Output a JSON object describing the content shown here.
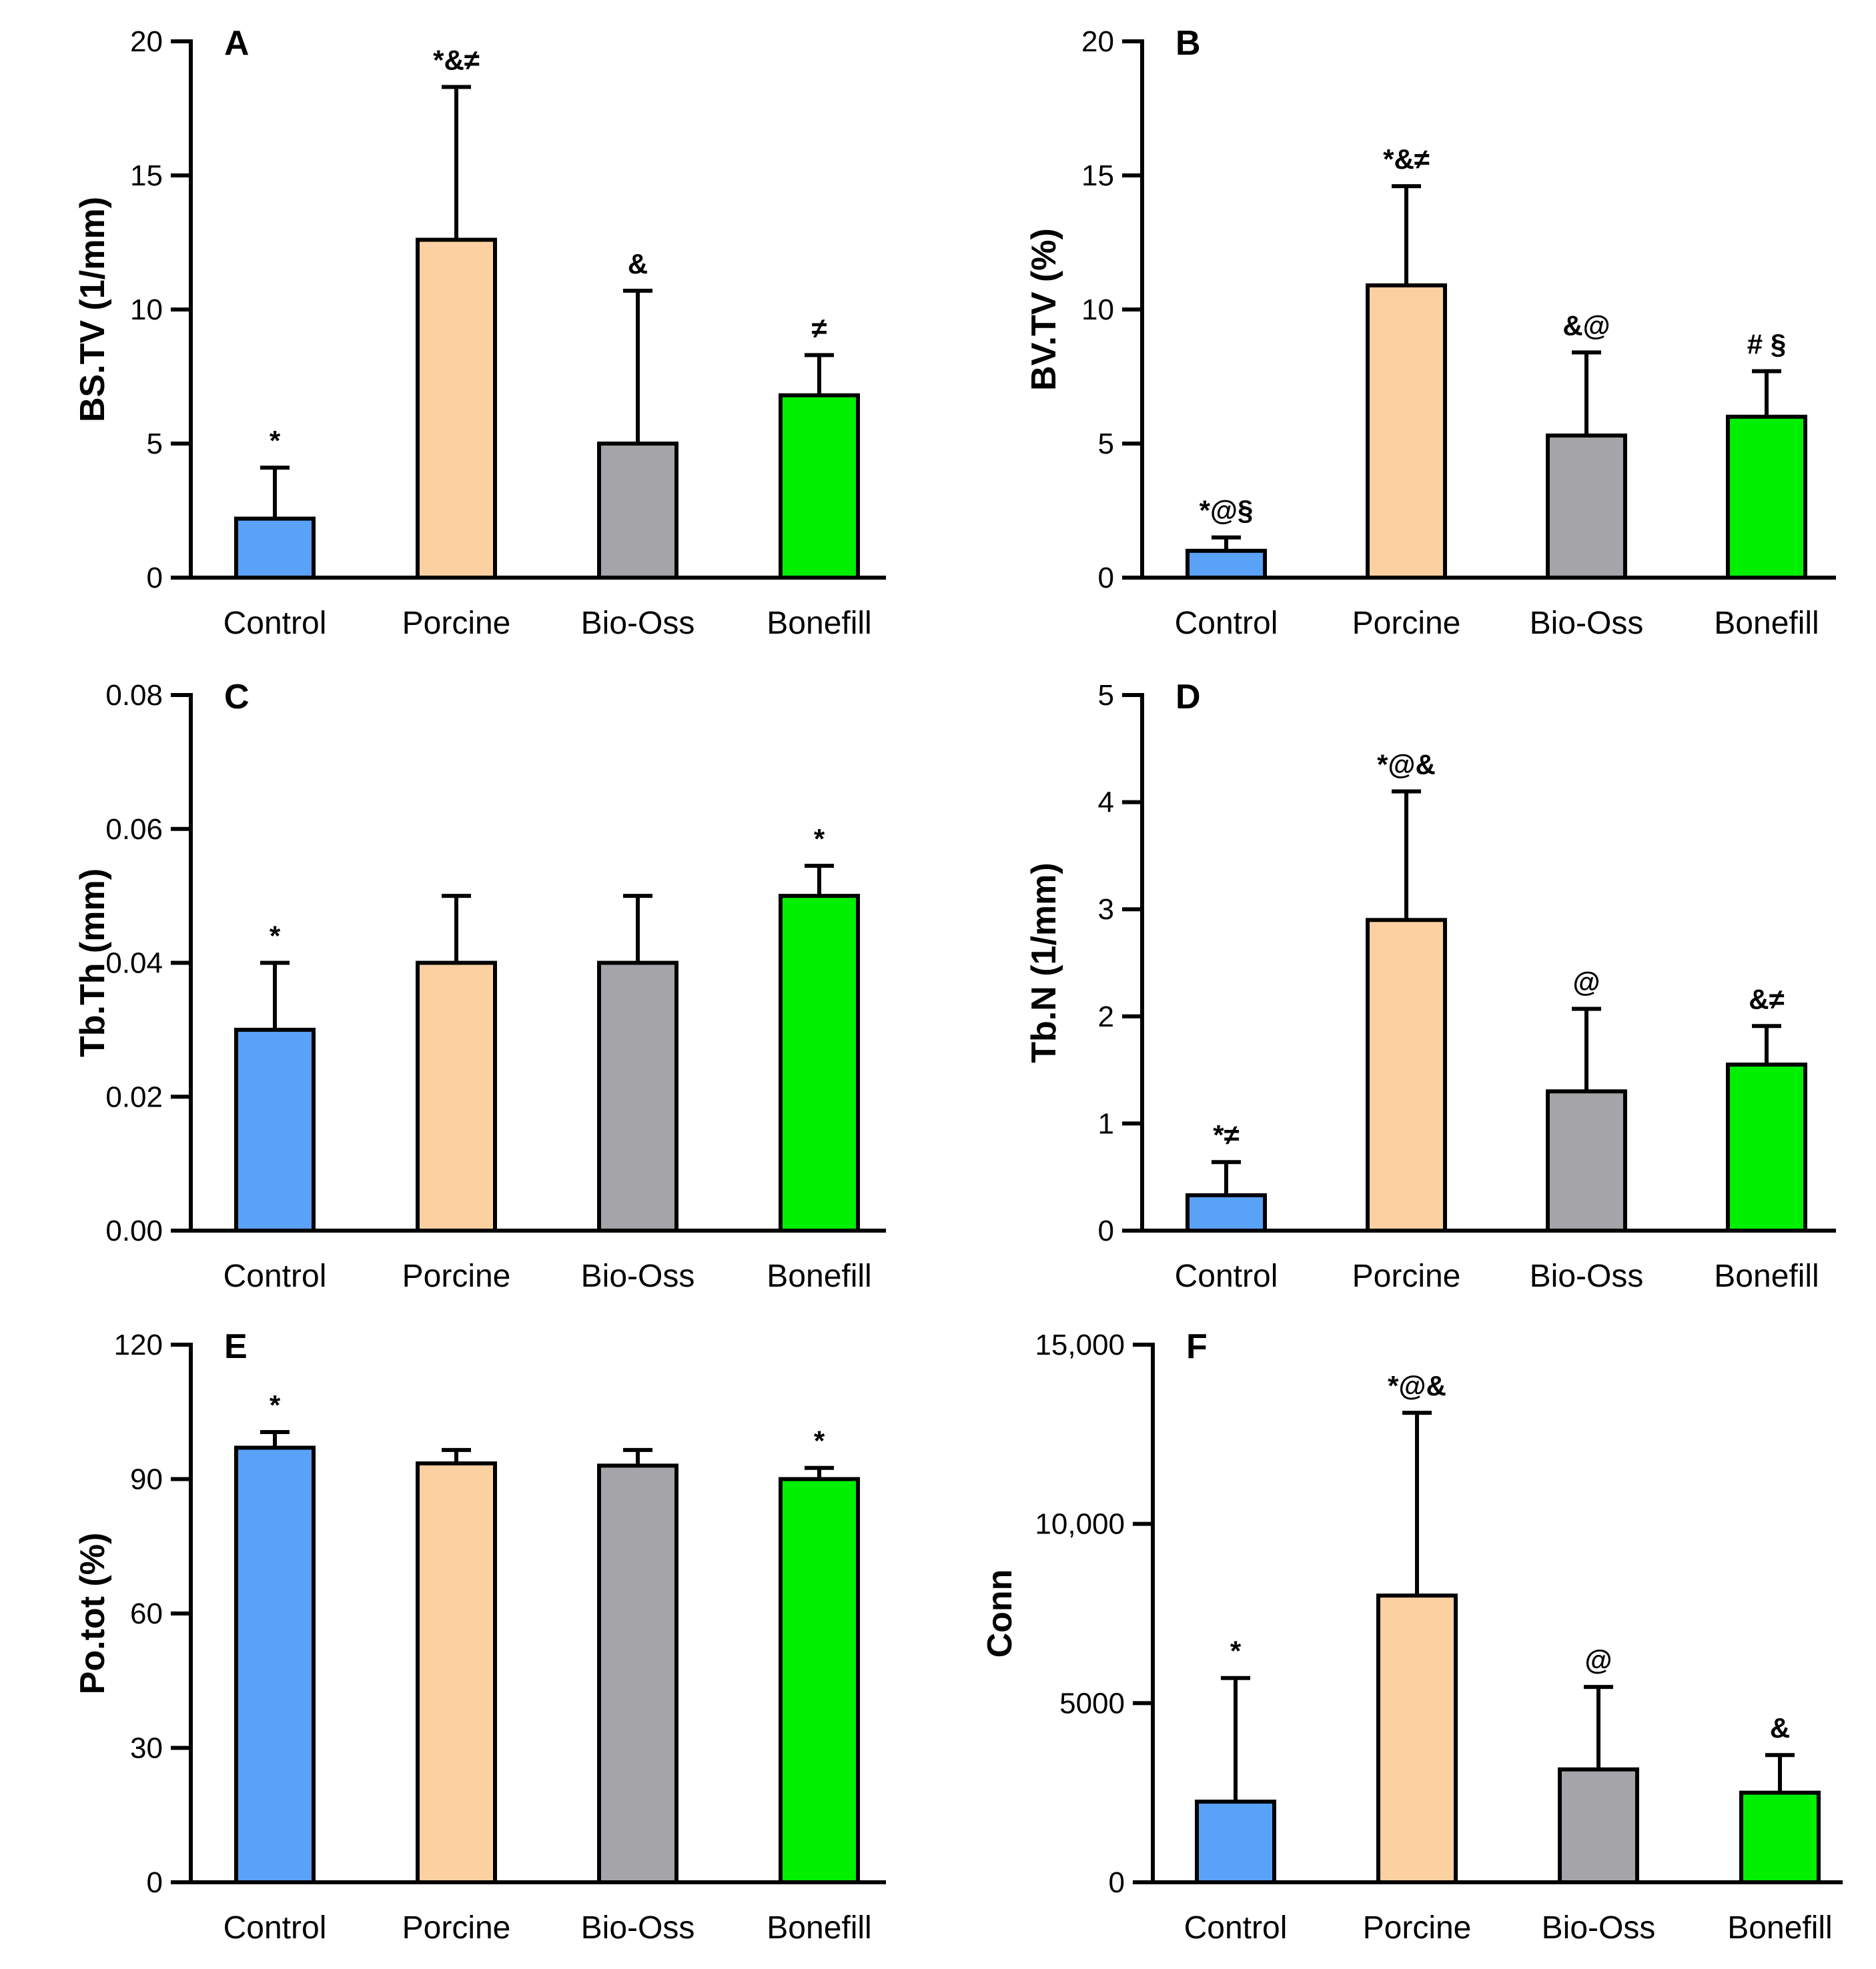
{
  "figure": {
    "categories": [
      "Control",
      "Porcine",
      "Bio-Oss",
      "Bonefill"
    ],
    "colors": [
      "#5aa2f7",
      "#fdd0a2",
      "#a4a4a9",
      "#00f000"
    ]
  },
  "chart_data": [
    {
      "panel": "A",
      "type": "bar",
      "title": "",
      "xlabel": "",
      "ylabel": "BS.TV (1/mm)",
      "categories": [
        "Control",
        "Porcine",
        "Bio-Oss",
        "Bonefill"
      ],
      "values": [
        2.2,
        12.6,
        5.0,
        6.8
      ],
      "errors": [
        1.9,
        5.7,
        5.7,
        1.5
      ],
      "annotations": [
        "*",
        "*&≠",
        "&",
        "≠"
      ],
      "ylim": [
        0,
        20
      ],
      "yticks": [
        0,
        5,
        10,
        15,
        20
      ],
      "ytick_labels": [
        "0",
        "5",
        "10",
        "15",
        "20"
      ],
      "grid": false,
      "legend": "none"
    },
    {
      "panel": "B",
      "type": "bar",
      "title": "",
      "xlabel": "",
      "ylabel": "BV.TV (%)",
      "categories": [
        "Control",
        "Porcine",
        "Bio-Oss",
        "Bonefill"
      ],
      "values": [
        1.0,
        10.9,
        5.3,
        6.0
      ],
      "errors": [
        0.5,
        3.7,
        3.1,
        1.7
      ],
      "annotations": [
        "*@§",
        "*&≠",
        "&@",
        "# §"
      ],
      "ylim": [
        0,
        20
      ],
      "yticks": [
        0,
        5,
        10,
        15,
        20
      ],
      "ytick_labels": [
        "0",
        "5",
        "10",
        "15",
        "20"
      ],
      "grid": false,
      "legend": "none"
    },
    {
      "panel": "C",
      "type": "bar",
      "title": "",
      "xlabel": "",
      "ylabel": "Tb.Th (mm)",
      "categories": [
        "Control",
        "Porcine",
        "Bio-Oss",
        "Bonefill"
      ],
      "values": [
        0.03,
        0.04,
        0.04,
        0.05
      ],
      "errors": [
        0.01,
        0.01,
        0.01,
        0.0045
      ],
      "annotations": [
        "*",
        "",
        "",
        "*"
      ],
      "ylim": [
        0,
        0.08
      ],
      "yticks": [
        0,
        0.02,
        0.04,
        0.06,
        0.08
      ],
      "ytick_labels": [
        "0.00",
        "0.02",
        "0.04",
        "0.06",
        "0.08"
      ],
      "grid": false,
      "legend": "none"
    },
    {
      "panel": "D",
      "type": "bar",
      "title": "",
      "xlabel": "",
      "ylabel": "Tb.N (1/mm)",
      "categories": [
        "Control",
        "Porcine",
        "Bio-Oss",
        "Bonefill"
      ],
      "values": [
        0.33,
        2.9,
        1.3,
        1.55
      ],
      "errors": [
        0.31,
        1.2,
        0.77,
        0.36
      ],
      "annotations": [
        "*≠",
        "*@&",
        "@",
        "&≠"
      ],
      "ylim": [
        0,
        5
      ],
      "yticks": [
        0,
        1,
        2,
        3,
        4,
        5
      ],
      "ytick_labels": [
        "0",
        "1",
        "2",
        "3",
        "4",
        "5"
      ],
      "grid": false,
      "legend": "none"
    },
    {
      "panel": "E",
      "type": "bar",
      "title": "",
      "xlabel": "",
      "ylabel": "Po.tot (%)",
      "categories": [
        "Control",
        "Porcine",
        "Bio-Oss",
        "Bonefill"
      ],
      "values": [
        97,
        93.5,
        93,
        90
      ],
      "errors": [
        3.5,
        3,
        3.5,
        2.5
      ],
      "annotations": [
        "*",
        "",
        "",
        "*"
      ],
      "ylim": [
        0,
        120
      ],
      "yticks": [
        0,
        30,
        60,
        90,
        120
      ],
      "ytick_labels": [
        "0",
        "30",
        "60",
        "90",
        "120"
      ],
      "grid": false,
      "legend": "none"
    },
    {
      "panel": "F",
      "type": "bar",
      "title": "",
      "xlabel": "",
      "ylabel": "Conn",
      "categories": [
        "Control",
        "Porcine",
        "Bio-Oss",
        "Bonefill"
      ],
      "values": [
        2250,
        8000,
        3150,
        2500
      ],
      "errors": [
        3450,
        5100,
        2300,
        1050
      ],
      "annotations": [
        "*",
        "*@&",
        "@",
        "&"
      ],
      "ylim": [
        0,
        15000
      ],
      "yticks": [
        0,
        5000,
        10000,
        15000
      ],
      "ytick_labels": [
        "0",
        "5000",
        "10,000",
        "15,000"
      ],
      "grid": false,
      "legend": "none"
    }
  ]
}
